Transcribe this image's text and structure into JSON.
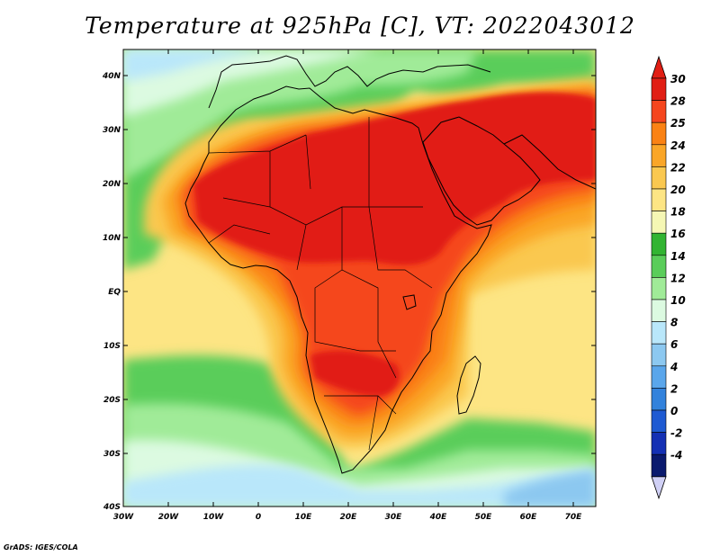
{
  "title": "Temperature at 925hPa [C], VT: 2022043012",
  "credit": "GrADS: IGES/COLA",
  "axes": {
    "lon_labels": [
      "30W",
      "20W",
      "10W",
      "0",
      "10E",
      "20E",
      "30E",
      "40E",
      "50E",
      "60E",
      "70E"
    ],
    "lat_labels": [
      "40N",
      "30N",
      "20N",
      "10N",
      "EQ",
      "10S",
      "20S",
      "30S",
      "40S"
    ]
  },
  "colorbar": {
    "labels": [
      "30",
      "28",
      "25",
      "24",
      "22",
      "20",
      "18",
      "16",
      "14",
      "12",
      "10",
      "8",
      "6",
      "4",
      "2",
      "0",
      "-2",
      "-4"
    ],
    "colors": [
      "#e11e14",
      "#f5461e",
      "#fa8214",
      "#faa628",
      "#fac850",
      "#fde584",
      "#f5f7b4",
      "#32b432",
      "#5acd5a",
      "#a0eb98",
      "#dcfae1",
      "#b9e7fa",
      "#8cc8f0",
      "#5aa6eb",
      "#3282dc",
      "#1e5ad2",
      "#1430b4",
      "#0a1a6e"
    ],
    "top_arrow_color": "#e11e14",
    "bottom_arrow_color": "#d0d0f5"
  },
  "field_colors": {
    "ocean_cool": "#b9e7fa",
    "ocean_cold": "#8cc8f0",
    "ocean_mild": "#dcfae1",
    "band_14": "#a0eb98",
    "band_16": "#5acd5a",
    "band_18": "#32b432",
    "band_20": "#fde584",
    "band_22": "#fac850",
    "band_24": "#faa628",
    "band_25": "#fa8214",
    "band_28": "#f5461e",
    "band_30": "#e11e14",
    "coast": "#000000"
  }
}
